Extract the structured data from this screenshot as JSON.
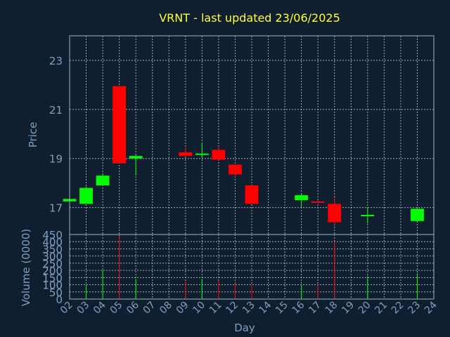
{
  "colors": {
    "background": "#0f1f30",
    "up": "#00ff00",
    "down": "#ff0000",
    "title": "#ffff33",
    "axis_text": "#7f9fc0"
  },
  "chart_data": {
    "type": "candlestick",
    "title": "VRNT - last updated 23/06/2025",
    "xlabel": "Day",
    "ylabel": "Price",
    "volume_label": "Volume (0000)",
    "price_ylim": [
      15.9,
      24.0
    ],
    "price_yticks": [
      17,
      19,
      21,
      23
    ],
    "volume_ylim": [
      0,
      450
    ],
    "volume_yticks": [
      0,
      50,
      100,
      150,
      200,
      250,
      300,
      350,
      400,
      450
    ],
    "xlim": [
      2,
      24
    ],
    "x_tick_labels": [
      "02",
      "03",
      "04",
      "05",
      "06",
      "07",
      "08",
      "09",
      "10",
      "11",
      "12",
      "13",
      "14",
      "15",
      "16",
      "17",
      "18",
      "19",
      "20",
      "21",
      "22",
      "23",
      "24"
    ],
    "grid": true,
    "candles": [
      {
        "x": 2,
        "open": 17.25,
        "high": 17.35,
        "low": 17.2,
        "close": 17.35,
        "volume": 0
      },
      {
        "x": 3,
        "open": 17.15,
        "high": 17.85,
        "low": 17.15,
        "close": 17.8,
        "volume": 100
      },
      {
        "x": 4,
        "open": 17.9,
        "high": 18.4,
        "low": 17.9,
        "close": 18.3,
        "volume": 200
      },
      {
        "x": 5,
        "open": 21.95,
        "high": 21.95,
        "low": 18.8,
        "close": 18.8,
        "volume": 440
      },
      {
        "x": 6,
        "open": 19.0,
        "high": 19.15,
        "low": 18.3,
        "close": 19.1,
        "volume": 140
      },
      {
        "x": 9,
        "open": 19.25,
        "high": 19.45,
        "low": 19.1,
        "close": 19.1,
        "volume": 120
      },
      {
        "x": 10,
        "open": 19.15,
        "high": 19.65,
        "low": 19.0,
        "close": 19.2,
        "volume": 140
      },
      {
        "x": 11,
        "open": 19.35,
        "high": 19.5,
        "low": 18.95,
        "close": 18.95,
        "volume": 130
      },
      {
        "x": 12,
        "open": 18.75,
        "high": 18.75,
        "low": 18.25,
        "close": 18.35,
        "volume": 110
      },
      {
        "x": 13,
        "open": 17.9,
        "high": 17.9,
        "low": 17.15,
        "close": 17.15,
        "volume": 100
      },
      {
        "x": 16,
        "open": 17.3,
        "high": 17.55,
        "low": 17.0,
        "close": 17.5,
        "volume": 100
      },
      {
        "x": 17,
        "open": 17.25,
        "high": 17.3,
        "low": 17.2,
        "close": 17.2,
        "volume": 100
      },
      {
        "x": 18,
        "open": 17.15,
        "high": 17.4,
        "low": 16.25,
        "close": 16.4,
        "volume": 400
      },
      {
        "x": 20,
        "open": 16.7,
        "high": 17.0,
        "low": 16.35,
        "close": 16.7,
        "volume": 160
      },
      {
        "x": 23,
        "open": 16.45,
        "high": 16.95,
        "low": 16.45,
        "close": 16.95,
        "volume": 180
      }
    ]
  }
}
